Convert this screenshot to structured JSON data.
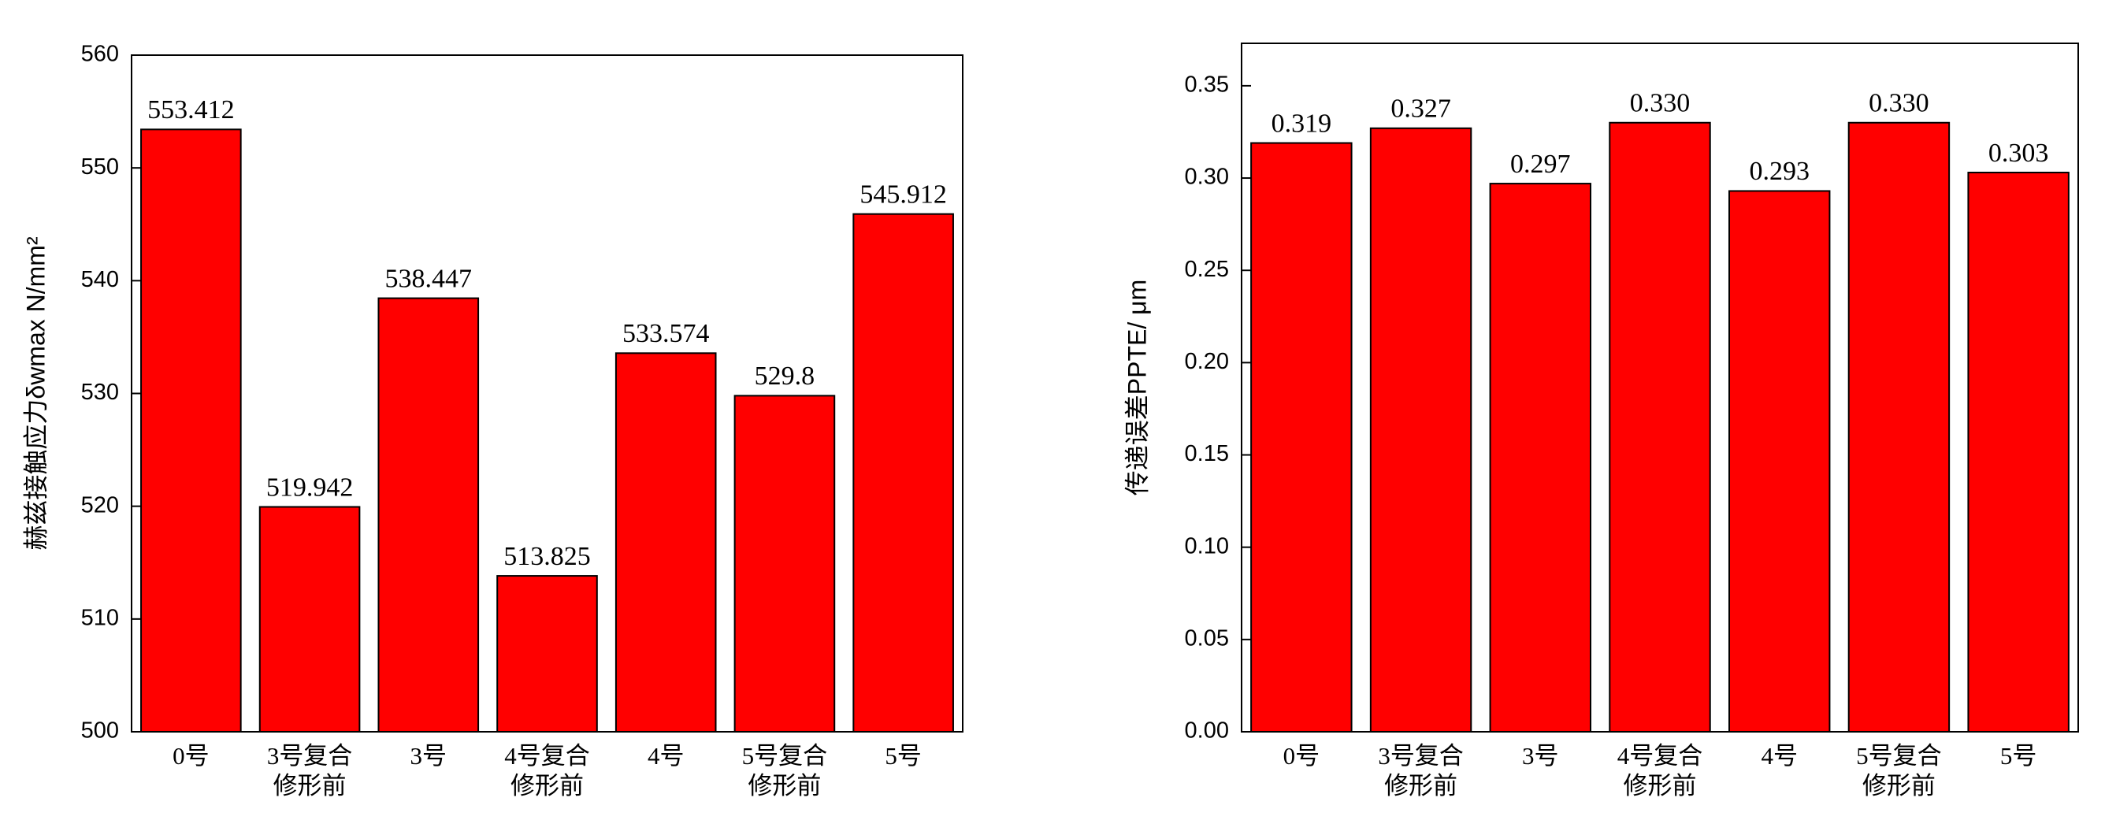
{
  "chart_data": [
    {
      "type": "bar",
      "y_label": "赫兹接触应力δwmax N/mm²",
      "categories": [
        "0号",
        "3号复合\n修形前",
        "3号",
        "4号复合\n修形前",
        "4号",
        "5号复合\n修形前",
        "5号"
      ],
      "values": [
        553.412,
        519.942,
        538.447,
        513.825,
        533.574,
        529.8,
        545.912
      ],
      "color": "#ff0000",
      "ylim": [
        500,
        560
      ],
      "yticks": [
        500,
        510,
        520,
        530,
        540,
        550,
        560
      ]
    },
    {
      "type": "bar",
      "y_label": "传递误差PPTE/ μm",
      "categories": [
        "0号",
        "3号复合\n修形前",
        "3号",
        "4号复合\n修形前",
        "4号",
        "5号复合\n修形前",
        "5号"
      ],
      "values": [
        0.319,
        0.327,
        0.297,
        0.33,
        0.293,
        0.33,
        0.303
      ],
      "value_labels": [
        "0.319",
        "0.327",
        "0.297",
        "0.330",
        "0.293",
        "0.330",
        "0.303"
      ],
      "color": "#ff0000",
      "ylim": [
        0,
        0.373
      ],
      "yticks": [
        {
          "value": 0,
          "label": "0.00"
        },
        {
          "value": 0.05,
          "label": "0.05"
        },
        {
          "value": 0.1,
          "label": "0.10"
        },
        {
          "value": 0.15,
          "label": "0.15"
        },
        {
          "value": 0.2,
          "label": "0.20"
        },
        {
          "value": 0.25,
          "label": "0.25"
        },
        {
          "value": 0.3,
          "label": "0.30"
        },
        {
          "value": 0.35,
          "label": "0.35"
        }
      ]
    }
  ]
}
